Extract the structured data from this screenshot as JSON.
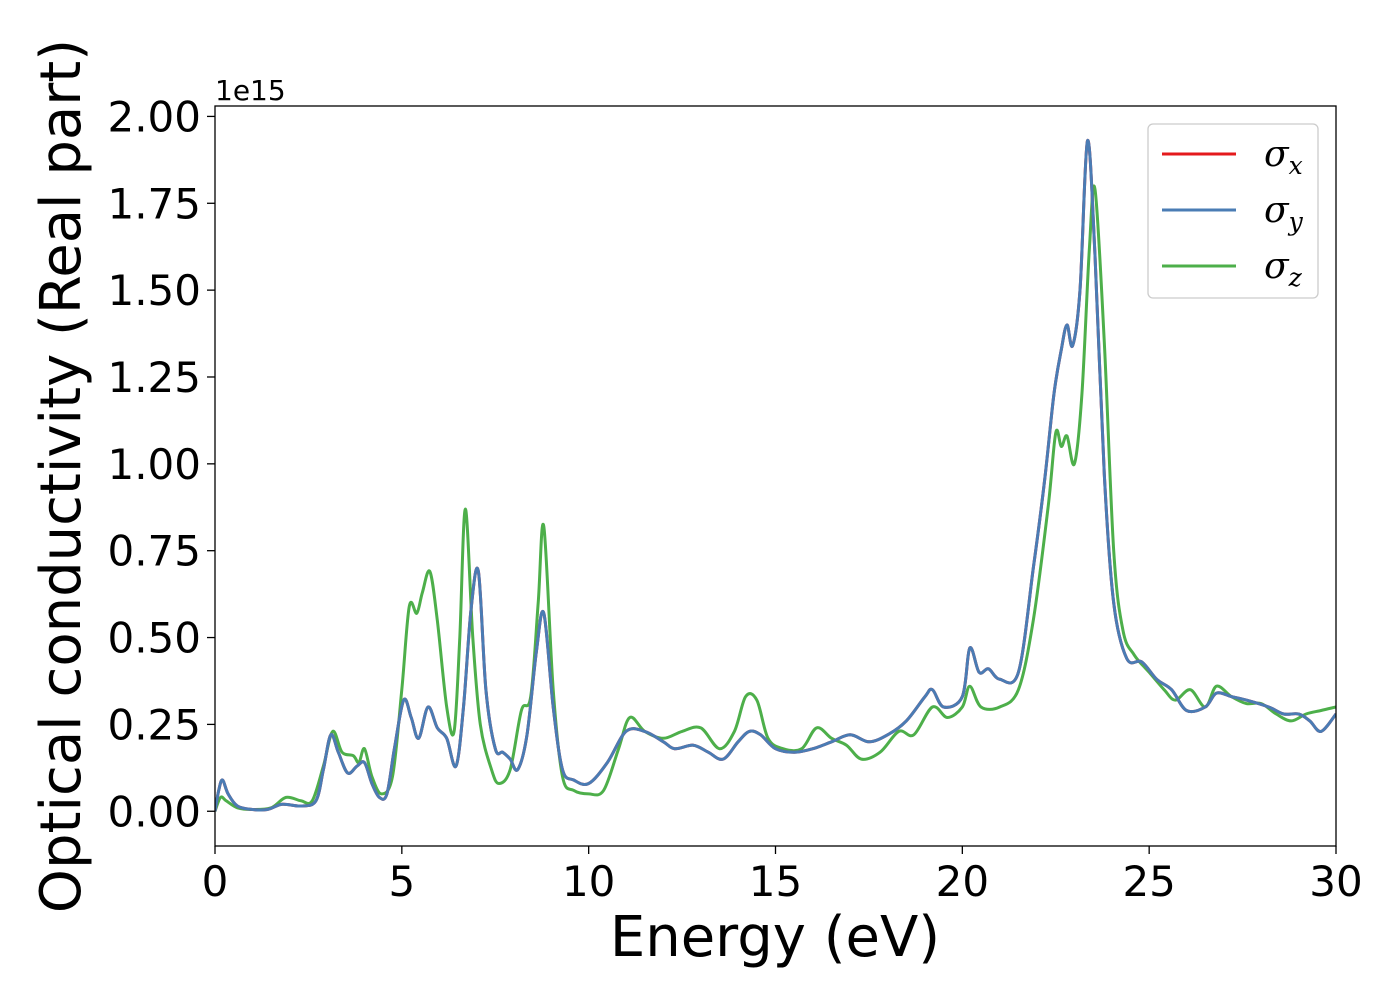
{
  "chart_data": {
    "type": "line",
    "xlabel": "Energy (eV)",
    "ylabel": "Optical conductivity (Real part)",
    "y_offset_label": "1e15",
    "xlim": [
      0,
      30
    ],
    "ylim": [
      -0.1,
      2.03
    ],
    "x_ticks": [
      "0",
      "5",
      "10",
      "15",
      "20",
      "25",
      "30"
    ],
    "y_ticks": [
      "0.00",
      "0.25",
      "0.50",
      "0.75",
      "1.00",
      "1.25",
      "1.50",
      "1.75",
      "2.00"
    ],
    "grid": false,
    "legend_position": "top-right",
    "series": [
      {
        "name": "σx",
        "symbol": "σ",
        "subscript": "x",
        "color": "#e41a1c",
        "points": [
          [
            0,
            0.0
          ],
          [
            0.1,
            0.06
          ],
          [
            0.2,
            0.09
          ],
          [
            0.35,
            0.05
          ],
          [
            0.6,
            0.015
          ],
          [
            1.0,
            0.005
          ],
          [
            1.4,
            0.005
          ],
          [
            1.8,
            0.02
          ],
          [
            2.3,
            0.015
          ],
          [
            2.7,
            0.03
          ],
          [
            2.9,
            0.12
          ],
          [
            3.1,
            0.22
          ],
          [
            3.3,
            0.17
          ],
          [
            3.55,
            0.11
          ],
          [
            3.8,
            0.13
          ],
          [
            4.0,
            0.14
          ],
          [
            4.2,
            0.08
          ],
          [
            4.4,
            0.04
          ],
          [
            4.6,
            0.05
          ],
          [
            4.8,
            0.18
          ],
          [
            5.05,
            0.32
          ],
          [
            5.25,
            0.27
          ],
          [
            5.45,
            0.21
          ],
          [
            5.7,
            0.3
          ],
          [
            5.95,
            0.24
          ],
          [
            6.2,
            0.21
          ],
          [
            6.45,
            0.13
          ],
          [
            6.65,
            0.3
          ],
          [
            6.85,
            0.58
          ],
          [
            7.05,
            0.69
          ],
          [
            7.25,
            0.35
          ],
          [
            7.5,
            0.18
          ],
          [
            7.7,
            0.17
          ],
          [
            7.9,
            0.15
          ],
          [
            8.1,
            0.12
          ],
          [
            8.35,
            0.22
          ],
          [
            8.6,
            0.46
          ],
          [
            8.8,
            0.57
          ],
          [
            9.05,
            0.3
          ],
          [
            9.3,
            0.12
          ],
          [
            9.6,
            0.09
          ],
          [
            10.0,
            0.08
          ],
          [
            10.5,
            0.14
          ],
          [
            11.0,
            0.23
          ],
          [
            11.5,
            0.23
          ],
          [
            12.0,
            0.2
          ],
          [
            12.3,
            0.18
          ],
          [
            12.8,
            0.19
          ],
          [
            13.2,
            0.17
          ],
          [
            13.6,
            0.15
          ],
          [
            14.0,
            0.2
          ],
          [
            14.3,
            0.23
          ],
          [
            14.6,
            0.22
          ],
          [
            15.0,
            0.18
          ],
          [
            15.5,
            0.17
          ],
          [
            16.0,
            0.18
          ],
          [
            16.5,
            0.2
          ],
          [
            17.0,
            0.22
          ],
          [
            17.5,
            0.2
          ],
          [
            18.0,
            0.22
          ],
          [
            18.5,
            0.26
          ],
          [
            19.0,
            0.33
          ],
          [
            19.2,
            0.35
          ],
          [
            19.5,
            0.3
          ],
          [
            20.0,
            0.33
          ],
          [
            20.2,
            0.47
          ],
          [
            20.45,
            0.4
          ],
          [
            20.7,
            0.41
          ],
          [
            21.0,
            0.38
          ],
          [
            21.5,
            0.4
          ],
          [
            21.9,
            0.7
          ],
          [
            22.2,
            0.95
          ],
          [
            22.45,
            1.2
          ],
          [
            22.65,
            1.33
          ],
          [
            22.8,
            1.4
          ],
          [
            22.95,
            1.34
          ],
          [
            23.15,
            1.5
          ],
          [
            23.35,
            1.93
          ],
          [
            23.55,
            1.6
          ],
          [
            23.8,
            0.97
          ],
          [
            24.05,
            0.6
          ],
          [
            24.4,
            0.44
          ],
          [
            24.8,
            0.43
          ],
          [
            25.2,
            0.38
          ],
          [
            25.6,
            0.35
          ],
          [
            26.0,
            0.29
          ],
          [
            26.5,
            0.3
          ],
          [
            26.8,
            0.34
          ],
          [
            27.2,
            0.33
          ],
          [
            27.6,
            0.32
          ],
          [
            28.2,
            0.3
          ],
          [
            28.6,
            0.28
          ],
          [
            29.0,
            0.28
          ],
          [
            29.3,
            0.26
          ],
          [
            29.6,
            0.23
          ],
          [
            30.0,
            0.28
          ]
        ]
      },
      {
        "name": "σy",
        "symbol": "σ",
        "subscript": "y",
        "color": "#4a7cb4",
        "points": [
          [
            0,
            0.0
          ],
          [
            0.1,
            0.06
          ],
          [
            0.2,
            0.09
          ],
          [
            0.35,
            0.05
          ],
          [
            0.6,
            0.015
          ],
          [
            1.0,
            0.005
          ],
          [
            1.4,
            0.005
          ],
          [
            1.8,
            0.02
          ],
          [
            2.3,
            0.015
          ],
          [
            2.7,
            0.03
          ],
          [
            2.9,
            0.12
          ],
          [
            3.1,
            0.22
          ],
          [
            3.3,
            0.17
          ],
          [
            3.55,
            0.11
          ],
          [
            3.8,
            0.13
          ],
          [
            4.0,
            0.14
          ],
          [
            4.2,
            0.08
          ],
          [
            4.4,
            0.04
          ],
          [
            4.6,
            0.05
          ],
          [
            4.8,
            0.18
          ],
          [
            5.05,
            0.32
          ],
          [
            5.25,
            0.27
          ],
          [
            5.45,
            0.21
          ],
          [
            5.7,
            0.3
          ],
          [
            5.95,
            0.24
          ],
          [
            6.2,
            0.21
          ],
          [
            6.45,
            0.13
          ],
          [
            6.65,
            0.3
          ],
          [
            6.85,
            0.58
          ],
          [
            7.05,
            0.69
          ],
          [
            7.25,
            0.35
          ],
          [
            7.5,
            0.18
          ],
          [
            7.7,
            0.17
          ],
          [
            7.9,
            0.15
          ],
          [
            8.1,
            0.12
          ],
          [
            8.35,
            0.22
          ],
          [
            8.6,
            0.46
          ],
          [
            8.8,
            0.57
          ],
          [
            9.05,
            0.3
          ],
          [
            9.3,
            0.12
          ],
          [
            9.6,
            0.09
          ],
          [
            10.0,
            0.08
          ],
          [
            10.5,
            0.14
          ],
          [
            11.0,
            0.23
          ],
          [
            11.5,
            0.23
          ],
          [
            12.0,
            0.2
          ],
          [
            12.3,
            0.18
          ],
          [
            12.8,
            0.19
          ],
          [
            13.2,
            0.17
          ],
          [
            13.6,
            0.15
          ],
          [
            14.0,
            0.2
          ],
          [
            14.3,
            0.23
          ],
          [
            14.6,
            0.22
          ],
          [
            15.0,
            0.18
          ],
          [
            15.5,
            0.17
          ],
          [
            16.0,
            0.18
          ],
          [
            16.5,
            0.2
          ],
          [
            17.0,
            0.22
          ],
          [
            17.5,
            0.2
          ],
          [
            18.0,
            0.22
          ],
          [
            18.5,
            0.26
          ],
          [
            19.0,
            0.33
          ],
          [
            19.2,
            0.35
          ],
          [
            19.5,
            0.3
          ],
          [
            20.0,
            0.33
          ],
          [
            20.2,
            0.47
          ],
          [
            20.45,
            0.4
          ],
          [
            20.7,
            0.41
          ],
          [
            21.0,
            0.38
          ],
          [
            21.5,
            0.4
          ],
          [
            21.9,
            0.7
          ],
          [
            22.2,
            0.95
          ],
          [
            22.45,
            1.2
          ],
          [
            22.65,
            1.33
          ],
          [
            22.8,
            1.4
          ],
          [
            22.95,
            1.34
          ],
          [
            23.15,
            1.5
          ],
          [
            23.35,
            1.93
          ],
          [
            23.55,
            1.6
          ],
          [
            23.8,
            0.97
          ],
          [
            24.05,
            0.6
          ],
          [
            24.4,
            0.44
          ],
          [
            24.8,
            0.43
          ],
          [
            25.2,
            0.38
          ],
          [
            25.6,
            0.35
          ],
          [
            26.0,
            0.29
          ],
          [
            26.5,
            0.3
          ],
          [
            26.8,
            0.34
          ],
          [
            27.2,
            0.33
          ],
          [
            27.6,
            0.32
          ],
          [
            28.2,
            0.3
          ],
          [
            28.6,
            0.28
          ],
          [
            29.0,
            0.28
          ],
          [
            29.3,
            0.26
          ],
          [
            29.6,
            0.23
          ],
          [
            30.0,
            0.28
          ]
        ]
      },
      {
        "name": "σz",
        "symbol": "σ",
        "subscript": "z",
        "color": "#4daf4a",
        "points": [
          [
            0,
            0.0
          ],
          [
            0.15,
            0.04
          ],
          [
            0.3,
            0.03
          ],
          [
            0.6,
            0.01
          ],
          [
            1.0,
            0.005
          ],
          [
            1.5,
            0.01
          ],
          [
            1.9,
            0.04
          ],
          [
            2.3,
            0.03
          ],
          [
            2.6,
            0.03
          ],
          [
            2.9,
            0.13
          ],
          [
            3.15,
            0.23
          ],
          [
            3.4,
            0.17
          ],
          [
            3.7,
            0.16
          ],
          [
            3.85,
            0.14
          ],
          [
            4.0,
            0.18
          ],
          [
            4.2,
            0.1
          ],
          [
            4.45,
            0.05
          ],
          [
            4.75,
            0.1
          ],
          [
            5.0,
            0.35
          ],
          [
            5.2,
            0.59
          ],
          [
            5.4,
            0.57
          ],
          [
            5.55,
            0.63
          ],
          [
            5.75,
            0.69
          ],
          [
            5.95,
            0.55
          ],
          [
            6.2,
            0.3
          ],
          [
            6.4,
            0.23
          ],
          [
            6.55,
            0.5
          ],
          [
            6.7,
            0.87
          ],
          [
            6.9,
            0.5
          ],
          [
            7.1,
            0.25
          ],
          [
            7.4,
            0.12
          ],
          [
            7.6,
            0.08
          ],
          [
            7.9,
            0.12
          ],
          [
            8.2,
            0.29
          ],
          [
            8.45,
            0.33
          ],
          [
            8.65,
            0.6
          ],
          [
            8.8,
            0.82
          ],
          [
            9.05,
            0.35
          ],
          [
            9.3,
            0.1
          ],
          [
            9.6,
            0.06
          ],
          [
            10.0,
            0.05
          ],
          [
            10.4,
            0.06
          ],
          [
            10.8,
            0.18
          ],
          [
            11.1,
            0.27
          ],
          [
            11.5,
            0.23
          ],
          [
            12.0,
            0.21
          ],
          [
            12.5,
            0.23
          ],
          [
            13.0,
            0.24
          ],
          [
            13.5,
            0.18
          ],
          [
            13.9,
            0.23
          ],
          [
            14.2,
            0.33
          ],
          [
            14.5,
            0.32
          ],
          [
            14.8,
            0.21
          ],
          [
            15.2,
            0.18
          ],
          [
            15.7,
            0.18
          ],
          [
            16.1,
            0.24
          ],
          [
            16.5,
            0.21
          ],
          [
            16.9,
            0.19
          ],
          [
            17.3,
            0.15
          ],
          [
            17.8,
            0.17
          ],
          [
            18.3,
            0.23
          ],
          [
            18.7,
            0.22
          ],
          [
            19.2,
            0.3
          ],
          [
            19.6,
            0.27
          ],
          [
            20.0,
            0.3
          ],
          [
            20.2,
            0.36
          ],
          [
            20.5,
            0.3
          ],
          [
            21.0,
            0.3
          ],
          [
            21.5,
            0.35
          ],
          [
            21.9,
            0.55
          ],
          [
            22.3,
            0.88
          ],
          [
            22.5,
            1.09
          ],
          [
            22.65,
            1.05
          ],
          [
            22.8,
            1.08
          ],
          [
            23.0,
            1.0
          ],
          [
            23.2,
            1.2
          ],
          [
            23.4,
            1.62
          ],
          [
            23.55,
            1.79
          ],
          [
            23.8,
            1.35
          ],
          [
            24.05,
            0.75
          ],
          [
            24.3,
            0.52
          ],
          [
            24.6,
            0.45
          ],
          [
            25.0,
            0.4
          ],
          [
            25.4,
            0.35
          ],
          [
            25.7,
            0.32
          ],
          [
            26.1,
            0.35
          ],
          [
            26.5,
            0.3
          ],
          [
            26.8,
            0.36
          ],
          [
            27.2,
            0.33
          ],
          [
            27.6,
            0.31
          ],
          [
            28.0,
            0.31
          ],
          [
            28.4,
            0.28
          ],
          [
            28.8,
            0.26
          ],
          [
            29.2,
            0.28
          ],
          [
            29.6,
            0.29
          ],
          [
            30.0,
            0.3
          ]
        ]
      }
    ]
  }
}
